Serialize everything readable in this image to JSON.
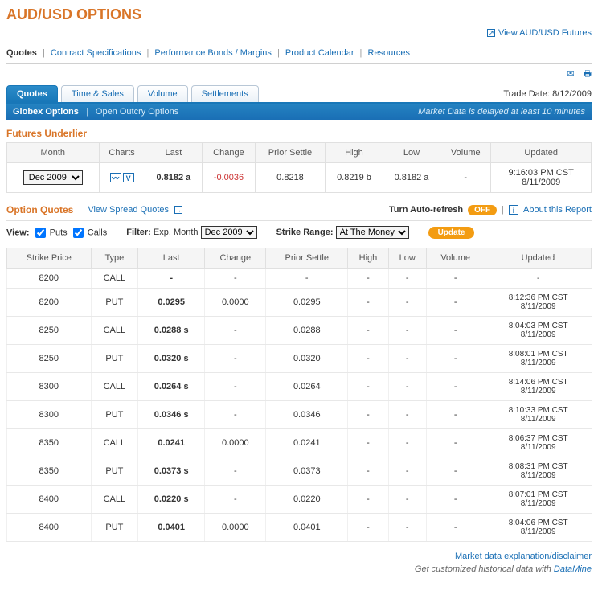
{
  "page": {
    "title": "AUD/USD OPTIONS"
  },
  "top_link": {
    "label": "View AUD/USD Futures"
  },
  "nav": {
    "quotes": "Quotes",
    "items": [
      "Contract Specifications",
      "Performance Bonds / Margins",
      "Product Calendar",
      "Resources"
    ]
  },
  "trade_date": {
    "label": "Trade Date:",
    "value": "8/12/2009"
  },
  "tabs": {
    "items": [
      {
        "label": "Quotes",
        "active": true
      },
      {
        "label": "Time & Sales",
        "active": false
      },
      {
        "label": "Volume",
        "active": false
      },
      {
        "label": "Settlements",
        "active": false
      }
    ]
  },
  "subbar": {
    "globex": "Globex Options",
    "open_outcry": "Open Outcry Options",
    "delay": "Market Data is delayed at least 10 minutes"
  },
  "futures": {
    "title": "Futures Underlier",
    "headers": [
      "Month",
      "Charts",
      "Last",
      "Change",
      "Prior Settle",
      "High",
      "Low",
      "Volume",
      "Updated"
    ],
    "month_select": "Dec 2009",
    "last": "0.8182 a",
    "change": "-0.0036",
    "prior_settle": "0.8218",
    "high": "0.8219 b",
    "low": "0.8182 a",
    "volume": "-",
    "updated_time": "9:16:03 PM CST",
    "updated_date": "8/11/2009"
  },
  "oq": {
    "title": "Option Quotes",
    "spread": "View Spread Quotes",
    "auto_label": "Turn Auto-refresh",
    "auto_state": "OFF",
    "about": "About this Report"
  },
  "filters": {
    "view": "View:",
    "puts": "Puts",
    "calls": "Calls",
    "filter_label": "Filter:",
    "exp": "Exp. Month",
    "exp_value": "Dec 2009",
    "strike_label": "Strike Range:",
    "strike_value": "At The Money",
    "update": "Update"
  },
  "options": {
    "headers": [
      "Strike Price",
      "Type",
      "Last",
      "Change",
      "Prior Settle",
      "High",
      "Low",
      "Volume",
      "Updated"
    ],
    "rows": [
      {
        "strike": "8200",
        "type": "CALL",
        "last": "-",
        "change": "-",
        "prior": "-",
        "high": "-",
        "low": "-",
        "vol": "-",
        "ut": "-",
        "ud": ""
      },
      {
        "strike": "8200",
        "type": "PUT",
        "last": "0.0295",
        "change": "0.0000",
        "prior": "0.0295",
        "high": "-",
        "low": "-",
        "vol": "-",
        "ut": "8:12:36 PM CST",
        "ud": "8/11/2009"
      },
      {
        "strike": "8250",
        "type": "CALL",
        "last": "0.0288 s",
        "change": "-",
        "prior": "0.0288",
        "high": "-",
        "low": "-",
        "vol": "-",
        "ut": "8:04:03 PM CST",
        "ud": "8/11/2009"
      },
      {
        "strike": "8250",
        "type": "PUT",
        "last": "0.0320 s",
        "change": "-",
        "prior": "0.0320",
        "high": "-",
        "low": "-",
        "vol": "-",
        "ut": "8:08:01 PM CST",
        "ud": "8/11/2009"
      },
      {
        "strike": "8300",
        "type": "CALL",
        "last": "0.0264 s",
        "change": "-",
        "prior": "0.0264",
        "high": "-",
        "low": "-",
        "vol": "-",
        "ut": "8:14:06 PM CST",
        "ud": "8/11/2009"
      },
      {
        "strike": "8300",
        "type": "PUT",
        "last": "0.0346 s",
        "change": "-",
        "prior": "0.0346",
        "high": "-",
        "low": "-",
        "vol": "-",
        "ut": "8:10:33 PM CST",
        "ud": "8/11/2009"
      },
      {
        "strike": "8350",
        "type": "CALL",
        "last": "0.0241",
        "change": "0.0000",
        "prior": "0.0241",
        "high": "-",
        "low": "-",
        "vol": "-",
        "ut": "8:06:37 PM CST",
        "ud": "8/11/2009"
      },
      {
        "strike": "8350",
        "type": "PUT",
        "last": "0.0373 s",
        "change": "-",
        "prior": "0.0373",
        "high": "-",
        "low": "-",
        "vol": "-",
        "ut": "8:08:31 PM CST",
        "ud": "8/11/2009"
      },
      {
        "strike": "8400",
        "type": "CALL",
        "last": "0.0220 s",
        "change": "-",
        "prior": "0.0220",
        "high": "-",
        "low": "-",
        "vol": "-",
        "ut": "8:07:01 PM CST",
        "ud": "8/11/2009"
      },
      {
        "strike": "8400",
        "type": "PUT",
        "last": "0.0401",
        "change": "0.0000",
        "prior": "0.0401",
        "high": "-",
        "low": "-",
        "vol": "-",
        "ut": "8:04:06 PM CST",
        "ud": "8/11/2009"
      }
    ]
  },
  "footer": {
    "explain": "Market data explanation/disclaimer",
    "datamine_prefix": "Get customized historical data with ",
    "datamine": "DataMine"
  }
}
